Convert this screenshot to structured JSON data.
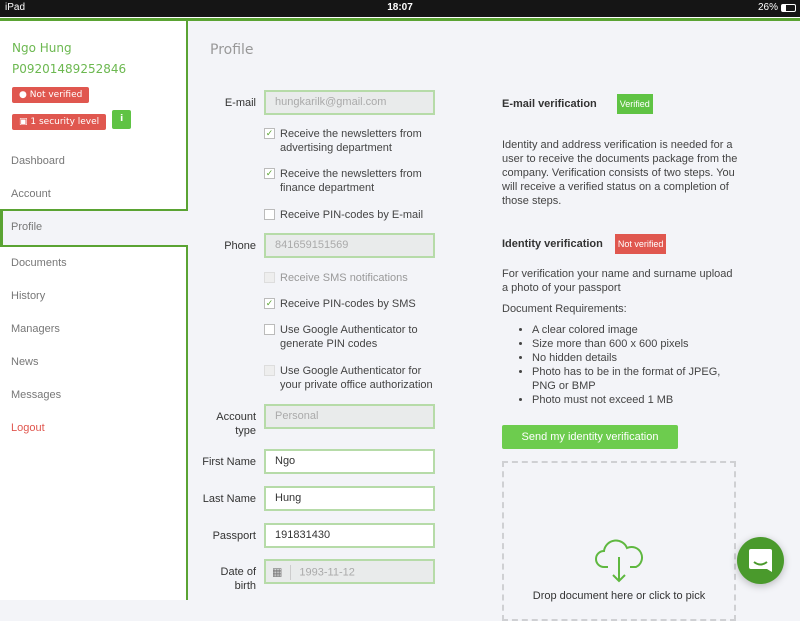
{
  "statusbar": {
    "device": "iPad",
    "time": "18:07",
    "battery": "26%"
  },
  "colors": {
    "accent": "#5aa333",
    "danger": "#e0574f",
    "button": "#6dcc4e"
  },
  "sidebar": {
    "user_name": "Ngo Hung",
    "user_id": "P09201489252846",
    "not_verified": "Not verified",
    "security": "1 security level",
    "info": "i",
    "items": [
      {
        "label": "Dashboard"
      },
      {
        "label": "Account"
      },
      {
        "label": "Profile"
      },
      {
        "label": "Documents"
      },
      {
        "label": "History"
      },
      {
        "label": "Managers"
      },
      {
        "label": "News"
      },
      {
        "label": "Messages"
      },
      {
        "label": "Logout"
      }
    ]
  },
  "main": {
    "title": "Profile",
    "email": {
      "label": "E-mail",
      "value": "hungkarilk@gmail.com"
    },
    "email_checks": [
      {
        "label": "Receive the newsletters from advertising department",
        "checked": true
      },
      {
        "label": "Receive the newsletters from finance department",
        "checked": true
      },
      {
        "label": "Receive PIN-codes by E-mail",
        "checked": false
      }
    ],
    "phone": {
      "label": "Phone",
      "value": "841659151569"
    },
    "phone_checks": [
      {
        "label": "Receive SMS notifications",
        "checked": false,
        "disabled": true
      },
      {
        "label": "Receive PIN-codes by SMS",
        "checked": true
      },
      {
        "label": "Use Google Authenticator to generate PIN codes",
        "checked": false
      },
      {
        "label": "Use Google Authenticator for your private office authorization",
        "checked": false,
        "disabled": true
      }
    ],
    "account_type": {
      "label": "Account type",
      "value": "Personal"
    },
    "first_name": {
      "label": "First Name",
      "value": "Ngo"
    },
    "last_name": {
      "label": "Last Name",
      "value": "Hung"
    },
    "passport": {
      "label": "Passport",
      "value": "191831430"
    },
    "dob": {
      "label": "Date of birth",
      "value": "1993-11-12"
    }
  },
  "verification": {
    "email_title": "E-mail verification",
    "email_status": "Verified",
    "intro": "Identity and address verification is needed for a user to receive the documents package from the company. Verification consists of two steps. You will receive a verified status on a completion of those steps.",
    "identity_title": "Identity verification",
    "identity_status": "Not verified",
    "upload_text": "For verification your name and surname upload a photo of your passport",
    "req_title": "Document Requirements:",
    "requirements": [
      "A clear colored image",
      "Size more than 600 x 600 pixels",
      "No hidden details",
      "Photo has to be in the format of JPEG, PNG or BMP",
      "Photo must not exceed 1 MB"
    ],
    "send_button": "Send my identity verification",
    "drop_text": "Drop document here or click to pick"
  }
}
